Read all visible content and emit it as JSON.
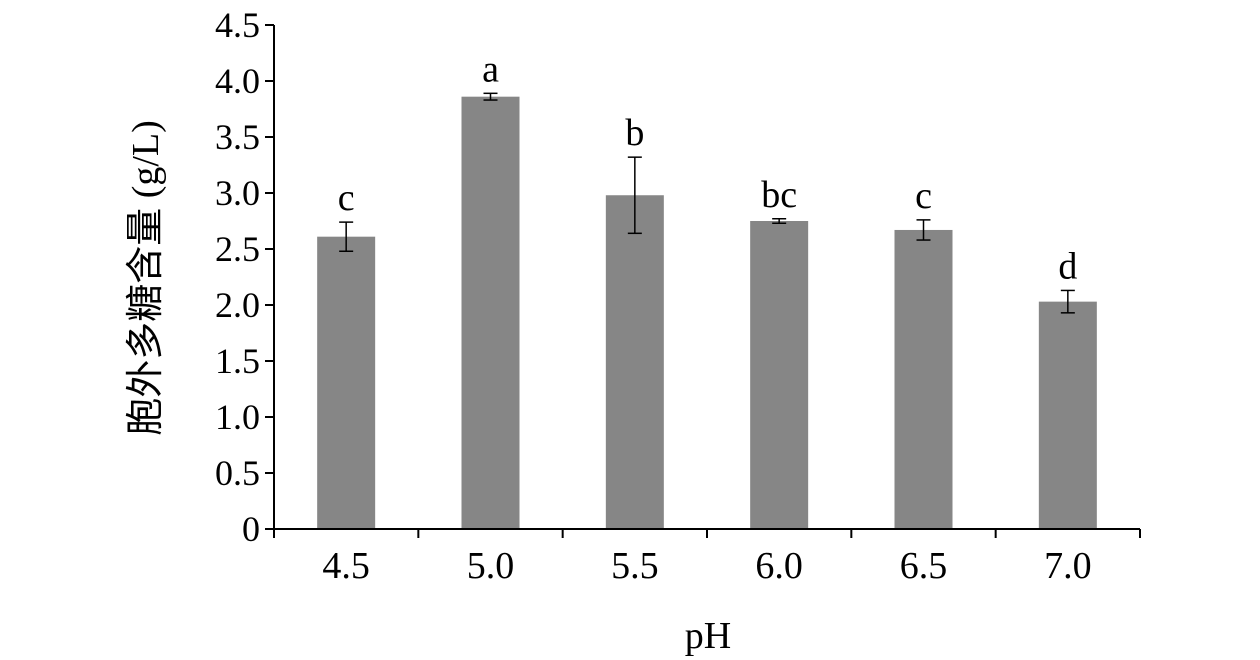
{
  "chart_data": {
    "type": "bar",
    "title": "",
    "xlabel": "pH",
    "ylabel": "胞外多糖含量 (g/L)",
    "categories": [
      "4.5",
      "5.0",
      "5.5",
      "6.0",
      "6.5",
      "7.0"
    ],
    "values": [
      2.61,
      3.86,
      2.98,
      2.75,
      2.67,
      2.03
    ],
    "errors": [
      0.13,
      0.03,
      0.34,
      0.02,
      0.09,
      0.1
    ],
    "significance_letters": [
      "c",
      "a",
      "b",
      "bc",
      "c",
      "d"
    ],
    "ylim": [
      0,
      4.5
    ],
    "yticks": [
      "0",
      "0.5",
      "1.0",
      "1.5",
      "2.0",
      "2.5",
      "3.0",
      "3.5",
      "4.0",
      "4.5"
    ],
    "bar_color": "#868686",
    "grid": false,
    "legend": "none"
  }
}
